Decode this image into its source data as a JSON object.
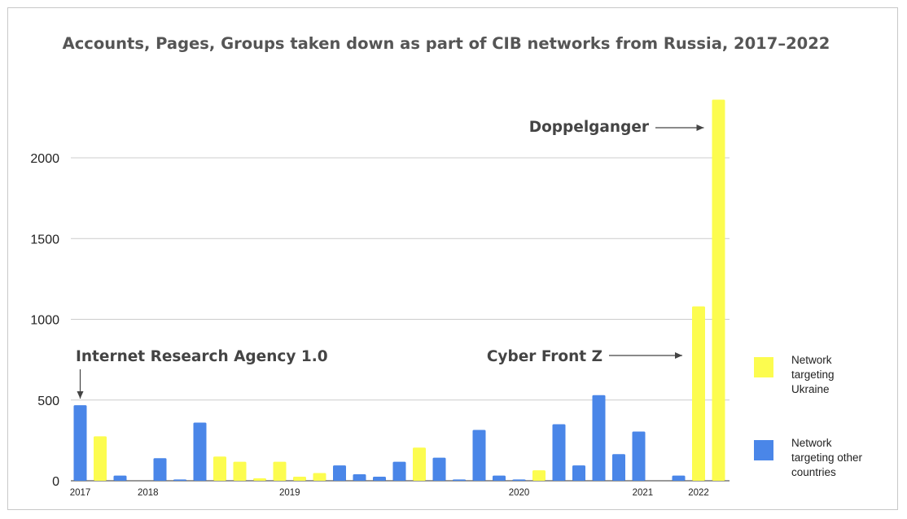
{
  "chart_data": {
    "type": "bar",
    "title": "Accounts, Pages, Groups taken down as part of CIB networks from Russia, 2017–2022",
    "ylim": [
      0,
      2400
    ],
    "yticks": [
      0,
      500,
      1000,
      1500,
      2000
    ],
    "grid": true,
    "legend_position": "right",
    "series": [
      {
        "name": "Network targeting Ukraine",
        "color": "#fcfc4f"
      },
      {
        "name": "Network targeting other countries",
        "color": "#4a86e8"
      }
    ],
    "bars": [
      {
        "value": 468,
        "series": 1
      },
      {
        "value": 275,
        "series": 0
      },
      {
        "value": 32,
        "series": 1
      },
      {
        "value": 0,
        "series": 1
      },
      {
        "value": 140,
        "series": 1
      },
      {
        "value": 8,
        "series": 1
      },
      {
        "value": 360,
        "series": 1
      },
      {
        "value": 150,
        "series": 0
      },
      {
        "value": 118,
        "series": 0
      },
      {
        "value": 15,
        "series": 0
      },
      {
        "value": 118,
        "series": 0
      },
      {
        "value": 25,
        "series": 0
      },
      {
        "value": 48,
        "series": 0
      },
      {
        "value": 95,
        "series": 1
      },
      {
        "value": 40,
        "series": 1
      },
      {
        "value": 25,
        "series": 1
      },
      {
        "value": 118,
        "series": 1
      },
      {
        "value": 205,
        "series": 0
      },
      {
        "value": 143,
        "series": 1
      },
      {
        "value": 8,
        "series": 1
      },
      {
        "value": 315,
        "series": 1
      },
      {
        "value": 32,
        "series": 1
      },
      {
        "value": 8,
        "series": 1
      },
      {
        "value": 65,
        "series": 0
      },
      {
        "value": 350,
        "series": 1
      },
      {
        "value": 95,
        "series": 1
      },
      {
        "value": 530,
        "series": 1
      },
      {
        "value": 165,
        "series": 1
      },
      {
        "value": 305,
        "series": 1
      },
      {
        "value": 0,
        "series": 1
      },
      {
        "value": 32,
        "series": 1
      },
      {
        "value": 1080,
        "series": 0
      },
      {
        "value": 2360,
        "series": 0
      }
    ],
    "x_labels": [
      {
        "text": "2017",
        "bar": 0
      },
      {
        "text": "2018",
        "bar": 3.4
      },
      {
        "text": "2019",
        "bar": 10.5
      },
      {
        "text": "2020",
        "bar": 22
      },
      {
        "text": "2021",
        "bar": 28.2
      },
      {
        "text": "2022",
        "bar": 31
      }
    ],
    "annotations": [
      {
        "text": "Internet Research Agency 1.0",
        "bar": 0
      },
      {
        "text": "Cyber Front Z",
        "bar": 31
      },
      {
        "text": "Doppelganger",
        "bar": 32
      }
    ]
  }
}
